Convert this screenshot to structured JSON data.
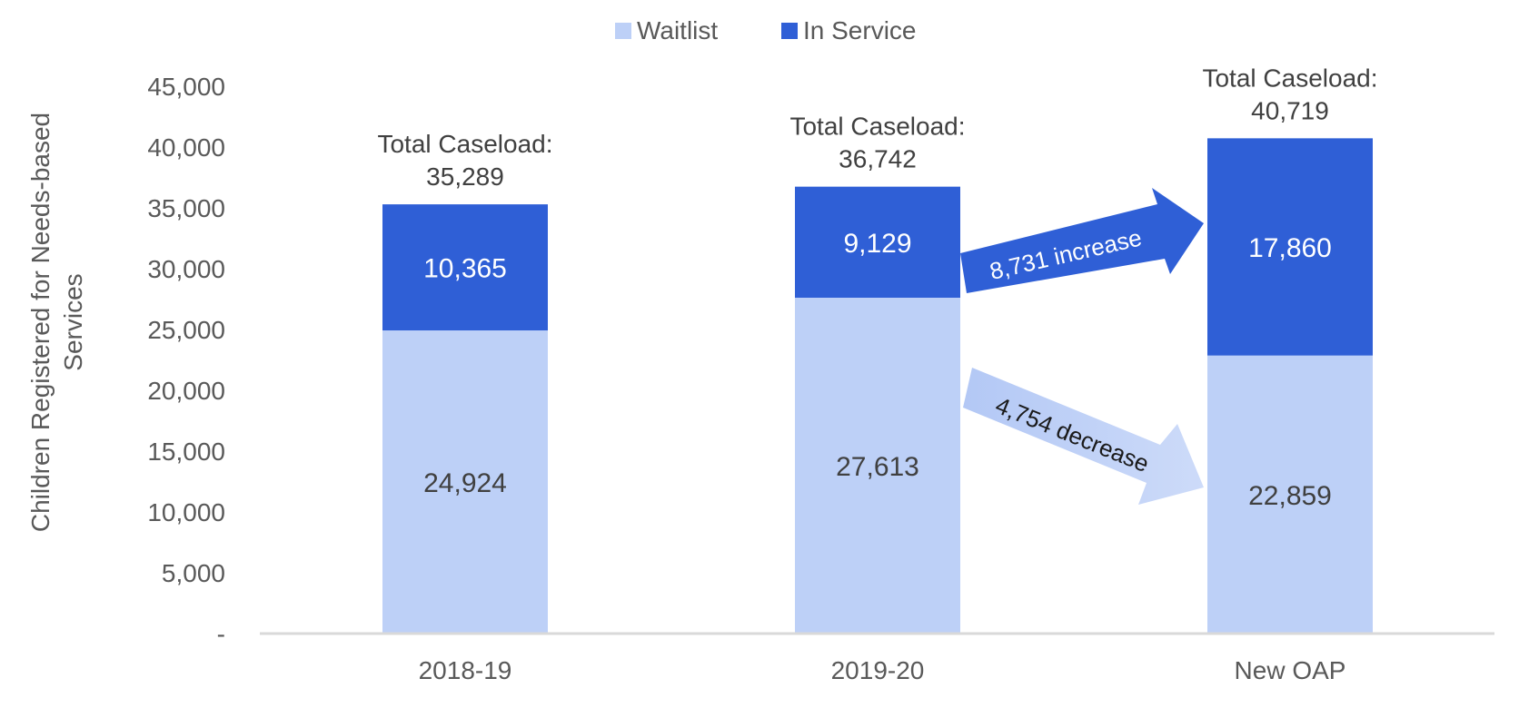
{
  "chart_data": {
    "type": "bar",
    "stacked": true,
    "categories": [
      "2018-19",
      "2019-20",
      "New OAP"
    ],
    "series": [
      {
        "name": "Waitlist",
        "values": [
          24924,
          27613,
          22859
        ],
        "color": "#bdd0f7"
      },
      {
        "name": "In Service",
        "values": [
          10365,
          9129,
          17860
        ],
        "color": "#2f5fd6"
      }
    ],
    "segment_labels": {
      "Waitlist": [
        "24,924",
        "27,613",
        "22,859"
      ],
      "In Service": [
        "10,365",
        "9,129",
        "17,860"
      ]
    },
    "totals": {
      "label": "Total Caseload:",
      "values": [
        "35,289",
        "36,742",
        "40,719"
      ]
    },
    "ylabel": "Children Registered for Needs-based Services",
    "ylim": [
      0,
      45000
    ],
    "yticks": [
      {
        "value": 0,
        "label": "-"
      },
      {
        "value": 5000,
        "label": "5,000"
      },
      {
        "value": 10000,
        "label": "10,000"
      },
      {
        "value": 15000,
        "label": "15,000"
      },
      {
        "value": 20000,
        "label": "20,000"
      },
      {
        "value": 25000,
        "label": "25,000"
      },
      {
        "value": 30000,
        "label": "30,000"
      },
      {
        "value": 35000,
        "label": "35,000"
      },
      {
        "value": 40000,
        "label": "40,000"
      },
      {
        "value": 45000,
        "label": "45,000"
      }
    ],
    "legend": {
      "position": "top"
    },
    "grid": false,
    "annotations": [
      {
        "text": "8,731 increase",
        "direction": "up",
        "color": "#2f5fd6"
      },
      {
        "text": "4,754 decrease",
        "direction": "down",
        "color": "#bdd0f7"
      }
    ]
  }
}
